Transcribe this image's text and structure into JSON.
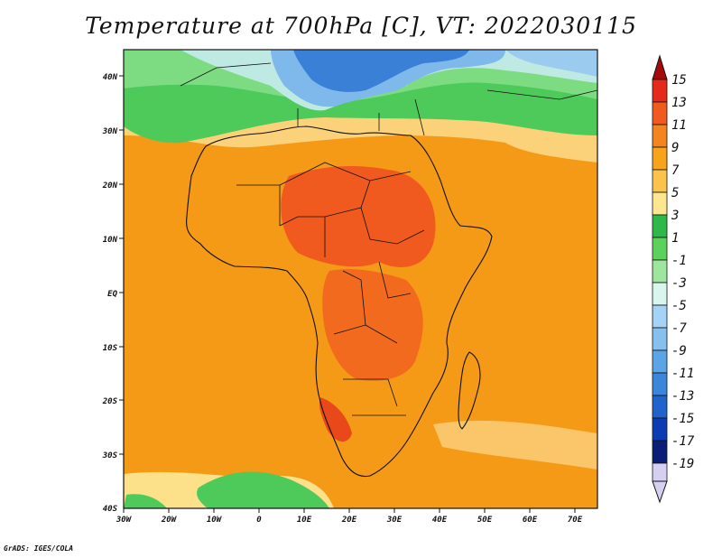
{
  "title": "Temperature at 700hPa [C], VT: 2022030115",
  "credit": "GrADS: IGES/COLA",
  "axes": {
    "lon_labels": [
      "30W",
      "20W",
      "10W",
      "0",
      "10E",
      "20E",
      "30E",
      "40E",
      "50E",
      "60E",
      "70E"
    ],
    "lat_labels": [
      "40N",
      "30N",
      "20N",
      "10N",
      "EQ",
      "10S",
      "20S",
      "30S",
      "40S"
    ]
  },
  "colorbar": {
    "labels": [
      "15",
      "13",
      "11",
      "9",
      "7",
      "5",
      "3",
      "1",
      "-1",
      "-3",
      "-5",
      "-7",
      "-9",
      "-11",
      "-13",
      "-15",
      "-17",
      "-19"
    ],
    "colors": [
      "#a50a0a",
      "#e5291a",
      "#f05a1e",
      "#f4851e",
      "#f8a31c",
      "#fbc34c",
      "#fde690",
      "#2eb84a",
      "#5cd25c",
      "#9ee59e",
      "#d8f5ee",
      "#a5d3f5",
      "#86c0ee",
      "#5aa5e6",
      "#3a86da",
      "#1f64cd",
      "#0c3cb4",
      "#0a1e78",
      "#d6d0f0"
    ]
  }
}
